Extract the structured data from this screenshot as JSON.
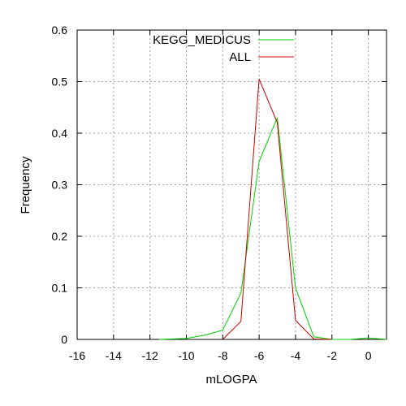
{
  "chart_data": {
    "type": "line",
    "xlabel": "mLOGPA",
    "ylabel": "Frequency",
    "xlim": [
      -16,
      1
    ],
    "ylim": [
      0,
      0.6
    ],
    "grid": true,
    "legend_position": "top",
    "x_ticks": [
      -16,
      -14,
      -12,
      -10,
      -8,
      -6,
      -4,
      -2,
      0
    ],
    "x_tick_labels": [
      "-16",
      "-14",
      "-12",
      "-10",
      "-8",
      "-6",
      "-4",
      "-2",
      "0"
    ],
    "y_ticks": [
      0,
      0.1,
      0.2,
      0.3,
      0.4,
      0.5,
      0.6
    ],
    "y_tick_labels": [
      "0",
      "0.1",
      "0.2",
      "0.3",
      "0.4",
      "0.5",
      "0.6"
    ],
    "series": [
      {
        "name": "KEGG_MEDICUS",
        "color": "#00d000",
        "x": [
          -11.5,
          -10,
          -9,
          -8,
          -7,
          -6,
          -5,
          -4,
          -3,
          -2,
          -1,
          0,
          1
        ],
        "y": [
          0.0,
          0.002,
          0.008,
          0.018,
          0.09,
          0.345,
          0.43,
          0.1,
          0.005,
          0.0,
          0.0,
          0.003,
          0.0
        ]
      },
      {
        "name": "ALL",
        "color": "#cc0000",
        "x": [
          -8,
          -7,
          -6,
          -5,
          -4,
          -3,
          -2
        ],
        "y": [
          0.0,
          0.035,
          0.505,
          0.42,
          0.037,
          0.001,
          0.0
        ]
      }
    ]
  }
}
